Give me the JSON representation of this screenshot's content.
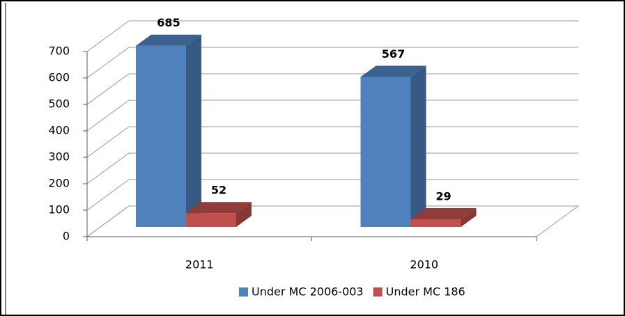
{
  "chart_data": {
    "type": "bar3d",
    "categories": [
      "2011",
      "2010"
    ],
    "series": [
      {
        "name": "Under MC 2006-003",
        "color": "#4f81bd",
        "values": [
          685,
          567
        ]
      },
      {
        "name": "Under MC 186",
        "color": "#c0504d",
        "values": [
          52,
          29
        ]
      }
    ],
    "ylim": [
      0,
      700
    ],
    "yticks": [
      0,
      100,
      200,
      300,
      400,
      500,
      600,
      700
    ],
    "grid": true,
    "legend": "bottom"
  }
}
